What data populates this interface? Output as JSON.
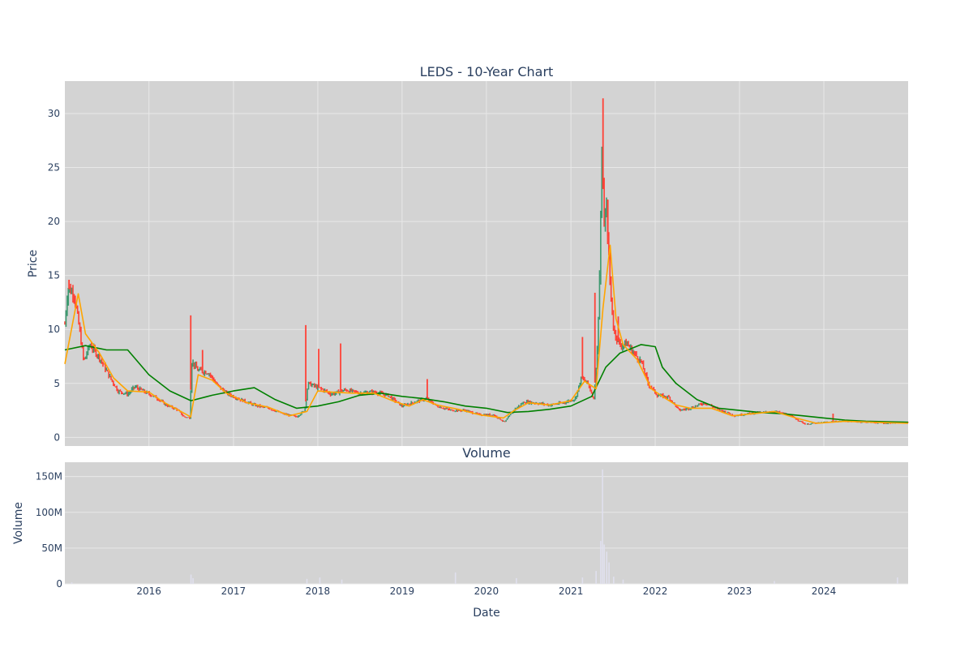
{
  "chart_data": [
    {
      "type": "candlestick",
      "title": "LEDS - 10-Year Chart",
      "ylabel": "Price",
      "ylim": [
        -0.8,
        33
      ],
      "y_ticks": [
        0,
        5,
        10,
        15,
        20,
        25,
        30
      ],
      "x_range": [
        "2015-01-02",
        "2024-12-31"
      ],
      "x_ticks": [
        "2016",
        "2017",
        "2018",
        "2019",
        "2020",
        "2021",
        "2022",
        "2023",
        "2024"
      ],
      "grid": true,
      "colors": {
        "plot_bg": "#d3d3d3",
        "grid": "#e8e8e8",
        "up": "#3d9970",
        "down": "#ff4136",
        "ma_short": "#ffa500",
        "ma_long": "#008000"
      },
      "price_path": [
        [
          "2015-01-02",
          10.5
        ],
        [
          "2015-01-15",
          13.8
        ],
        [
          "2015-02-10",
          13.4
        ],
        [
          "2015-03-05",
          10.2
        ],
        [
          "2015-03-25",
          7.0
        ],
        [
          "2015-04-20",
          8.6
        ],
        [
          "2015-06-01",
          7.4
        ],
        [
          "2015-07-15",
          5.6
        ],
        [
          "2015-08-20",
          4.3
        ],
        [
          "2015-10-01",
          4.0
        ],
        [
          "2015-11-01",
          4.7
        ],
        [
          "2015-12-15",
          4.2
        ],
        [
          "2016-02-01",
          3.7
        ],
        [
          "2016-03-15",
          3.0
        ],
        [
          "2016-05-01",
          2.6
        ],
        [
          "2016-06-01",
          1.9
        ],
        [
          "2016-06-25",
          1.8
        ],
        [
          "2016-07-05",
          7.0
        ],
        [
          "2016-08-01",
          6.2
        ],
        [
          "2016-09-15",
          6.0
        ],
        [
          "2016-10-20",
          4.9
        ],
        [
          "2016-12-01",
          4.1
        ],
        [
          "2017-02-01",
          3.5
        ],
        [
          "2017-04-01",
          3.0
        ],
        [
          "2017-06-01",
          2.7
        ],
        [
          "2017-08-01",
          2.2
        ],
        [
          "2017-10-01",
          1.9
        ],
        [
          "2017-11-05",
          2.5
        ],
        [
          "2017-11-20",
          5.0
        ],
        [
          "2018-01-15",
          4.5
        ],
        [
          "2018-03-01",
          4.0
        ],
        [
          "2018-05-01",
          4.4
        ],
        [
          "2018-07-01",
          4.1
        ],
        [
          "2018-09-01",
          4.2
        ],
        [
          "2018-11-01",
          3.9
        ],
        [
          "2019-01-01",
          2.9
        ],
        [
          "2019-03-01",
          3.3
        ],
        [
          "2019-04-15",
          3.6
        ],
        [
          "2019-06-01",
          2.9
        ],
        [
          "2019-08-01",
          2.5
        ],
        [
          "2019-10-01",
          2.5
        ],
        [
          "2019-12-01",
          2.1
        ],
        [
          "2020-02-01",
          2.1
        ],
        [
          "2020-03-20",
          1.4
        ],
        [
          "2020-05-01",
          2.6
        ],
        [
          "2020-06-15",
          3.3
        ],
        [
          "2020-08-01",
          3.2
        ],
        [
          "2020-10-01",
          3.0
        ],
        [
          "2020-12-01",
          3.2
        ],
        [
          "2021-01-20",
          3.6
        ],
        [
          "2021-02-15",
          5.5
        ],
        [
          "2021-03-15",
          5.0
        ],
        [
          "2021-04-10",
          3.6
        ],
        [
          "2021-04-25",
          8.0
        ],
        [
          "2021-05-05",
          15.0
        ],
        [
          "2021-05-15",
          26.0
        ],
        [
          "2021-05-25",
          20.0
        ],
        [
          "2021-06-05",
          21.0
        ],
        [
          "2021-06-20",
          14.0
        ],
        [
          "2021-07-05",
          10.0
        ],
        [
          "2021-08-01",
          8.5
        ],
        [
          "2021-09-01",
          8.7
        ],
        [
          "2021-10-01",
          7.8
        ],
        [
          "2021-11-01",
          7.0
        ],
        [
          "2021-12-01",
          5.0
        ],
        [
          "2022-01-10",
          3.9
        ],
        [
          "2022-03-01",
          3.7
        ],
        [
          "2022-04-15",
          2.5
        ],
        [
          "2022-06-01",
          2.7
        ],
        [
          "2022-08-01",
          3.2
        ],
        [
          "2022-10-01",
          2.6
        ],
        [
          "2022-12-15",
          2.0
        ],
        [
          "2023-02-01",
          2.2
        ],
        [
          "2023-04-01",
          2.3
        ],
        [
          "2023-06-01",
          2.4
        ],
        [
          "2023-08-01",
          2.1
        ],
        [
          "2023-10-15",
          1.2
        ],
        [
          "2024-01-01",
          1.4
        ],
        [
          "2024-04-01",
          1.5
        ],
        [
          "2024-07-01",
          1.4
        ],
        [
          "2024-10-01",
          1.3
        ],
        [
          "2024-12-31",
          1.4
        ]
      ],
      "spikes": [
        [
          "2015-01-20",
          14.6
        ],
        [
          "2016-06-30",
          11.3
        ],
        [
          "2016-08-20",
          8.1
        ],
        [
          "2017-11-10",
          10.4
        ],
        [
          "2018-01-05",
          8.2
        ],
        [
          "2018-04-10",
          8.7
        ],
        [
          "2019-04-20",
          5.4
        ],
        [
          "2021-02-20",
          9.3
        ],
        [
          "2021-04-15",
          13.4
        ],
        [
          "2021-05-20",
          31.4
        ],
        [
          "2021-06-10",
          22.0
        ],
        [
          "2021-07-25",
          11.2
        ],
        [
          "2024-02-10",
          2.2
        ]
      ],
      "ma_short": [
        [
          "2015-01-02",
          6.8
        ],
        [
          "2015-03-01",
          13.3
        ],
        [
          "2015-04-01",
          9.6
        ],
        [
          "2015-06-01",
          7.8
        ],
        [
          "2015-08-01",
          5.5
        ],
        [
          "2015-10-01",
          4.3
        ],
        [
          "2016-01-01",
          4.2
        ],
        [
          "2016-03-01",
          3.3
        ],
        [
          "2016-05-01",
          2.6
        ],
        [
          "2016-06-30",
          1.9
        ],
        [
          "2016-08-01",
          5.8
        ],
        [
          "2016-10-01",
          5.3
        ],
        [
          "2016-12-01",
          4.1
        ],
        [
          "2017-03-01",
          3.2
        ],
        [
          "2017-06-01",
          2.8
        ],
        [
          "2017-09-01",
          2.0
        ],
        [
          "2017-11-15",
          2.4
        ],
        [
          "2018-01-01",
          4.3
        ],
        [
          "2018-03-01",
          4.2
        ],
        [
          "2018-06-01",
          4.1
        ],
        [
          "2018-09-01",
          4.1
        ],
        [
          "2018-12-01",
          3.3
        ],
        [
          "2019-02-01",
          2.9
        ],
        [
          "2019-04-01",
          3.5
        ],
        [
          "2019-06-01",
          3.0
        ],
        [
          "2019-09-01",
          2.6
        ],
        [
          "2019-12-01",
          2.1
        ],
        [
          "2020-03-15",
          1.8
        ],
        [
          "2020-05-01",
          2.5
        ],
        [
          "2020-07-01",
          3.2
        ],
        [
          "2020-10-01",
          3.0
        ],
        [
          "2021-01-01",
          3.4
        ],
        [
          "2021-03-01",
          5.2
        ],
        [
          "2021-04-20",
          4.5
        ],
        [
          "2021-05-20",
          12.0
        ],
        [
          "2021-06-20",
          17.8
        ],
        [
          "2021-07-15",
          11.0
        ],
        [
          "2021-08-15",
          8.6
        ],
        [
          "2021-10-15",
          7.2
        ],
        [
          "2021-12-15",
          4.5
        ],
        [
          "2022-02-01",
          3.8
        ],
        [
          "2022-04-01",
          3.0
        ],
        [
          "2022-06-01",
          2.7
        ],
        [
          "2022-09-01",
          2.7
        ],
        [
          "2022-12-01",
          2.0
        ],
        [
          "2023-03-01",
          2.2
        ],
        [
          "2023-06-01",
          2.4
        ],
        [
          "2023-09-01",
          1.8
        ],
        [
          "2023-12-01",
          1.3
        ],
        [
          "2024-04-01",
          1.5
        ],
        [
          "2024-08-01",
          1.4
        ],
        [
          "2024-12-31",
          1.3
        ]
      ],
      "ma_long": [
        [
          "2015-01-02",
          8.1
        ],
        [
          "2015-04-01",
          8.5
        ],
        [
          "2015-07-01",
          8.1
        ],
        [
          "2015-10-01",
          8.1
        ],
        [
          "2016-01-01",
          5.8
        ],
        [
          "2016-04-01",
          4.3
        ],
        [
          "2016-07-01",
          3.4
        ],
        [
          "2016-10-01",
          3.9
        ],
        [
          "2017-01-01",
          4.3
        ],
        [
          "2017-04-01",
          4.6
        ],
        [
          "2017-07-01",
          3.5
        ],
        [
          "2017-10-01",
          2.7
        ],
        [
          "2018-01-01",
          2.9
        ],
        [
          "2018-04-01",
          3.3
        ],
        [
          "2018-07-01",
          3.9
        ],
        [
          "2018-10-01",
          4.1
        ],
        [
          "2019-01-01",
          3.8
        ],
        [
          "2019-04-01",
          3.6
        ],
        [
          "2019-07-01",
          3.3
        ],
        [
          "2019-10-01",
          2.9
        ],
        [
          "2020-01-01",
          2.7
        ],
        [
          "2020-04-01",
          2.3
        ],
        [
          "2020-07-01",
          2.4
        ],
        [
          "2020-10-01",
          2.6
        ],
        [
          "2021-01-01",
          2.9
        ],
        [
          "2021-04-01",
          3.8
        ],
        [
          "2021-06-01",
          6.5
        ],
        [
          "2021-08-01",
          7.8
        ],
        [
          "2021-11-01",
          8.6
        ],
        [
          "2022-01-01",
          8.4
        ],
        [
          "2022-02-01",
          6.5
        ],
        [
          "2022-04-01",
          5.0
        ],
        [
          "2022-07-01",
          3.5
        ],
        [
          "2022-10-01",
          2.7
        ],
        [
          "2023-01-01",
          2.5
        ],
        [
          "2023-04-01",
          2.3
        ],
        [
          "2023-07-01",
          2.2
        ],
        [
          "2023-10-01",
          2.0
        ],
        [
          "2024-01-01",
          1.8
        ],
        [
          "2024-04-01",
          1.6
        ],
        [
          "2024-07-01",
          1.5
        ],
        [
          "2024-12-31",
          1.4
        ]
      ]
    },
    {
      "type": "bar",
      "title": "Volume",
      "ylabel": "Volume",
      "xlabel": "Date",
      "ylim": [
        0,
        170000000
      ],
      "y_ticks": [
        0,
        50000000,
        100000000,
        150000000
      ],
      "y_tick_labels": [
        "0",
        "50M",
        "100M",
        "150M"
      ],
      "x_ticks": [
        "2016",
        "2017",
        "2018",
        "2019",
        "2020",
        "2021",
        "2022",
        "2023",
        "2024"
      ],
      "grid": true,
      "colors": {
        "bar": "#e0e0ee"
      },
      "bars": [
        [
          "2015-02-01",
          2000000
        ],
        [
          "2016-07-01",
          13000000
        ],
        [
          "2016-07-10",
          8000000
        ],
        [
          "2017-11-15",
          7000000
        ],
        [
          "2018-01-10",
          9000000
        ],
        [
          "2018-04-15",
          6000000
        ],
        [
          "2019-08-20",
          16000000
        ],
        [
          "2020-05-10",
          8000000
        ],
        [
          "2021-02-20",
          9000000
        ],
        [
          "2021-04-20",
          18000000
        ],
        [
          "2021-05-10",
          60000000
        ],
        [
          "2021-05-18",
          160000000
        ],
        [
          "2021-05-25",
          55000000
        ],
        [
          "2021-06-05",
          45000000
        ],
        [
          "2021-06-15",
          30000000
        ],
        [
          "2021-07-05",
          10000000
        ],
        [
          "2021-08-15",
          6000000
        ],
        [
          "2023-06-01",
          4000000
        ],
        [
          "2024-11-15",
          9000000
        ]
      ]
    }
  ]
}
